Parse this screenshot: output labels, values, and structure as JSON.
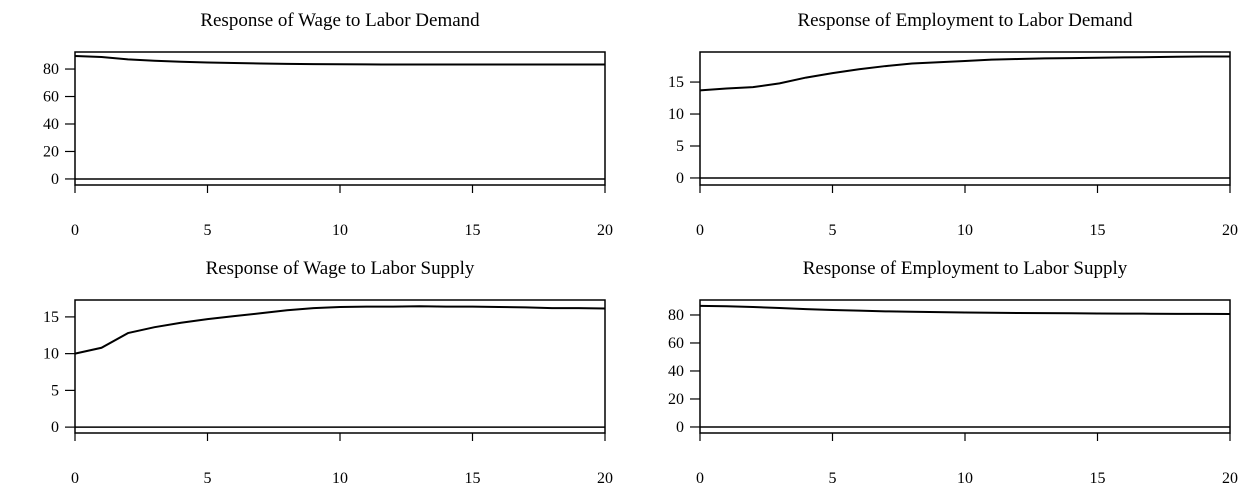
{
  "chart_data": [
    {
      "type": "line",
      "title": "Response of Wage to Labor Demand",
      "x": [
        0,
        1,
        2,
        3,
        4,
        5,
        6,
        7,
        8,
        9,
        10,
        11,
        12,
        13,
        14,
        15,
        16,
        17,
        18,
        19,
        20
      ],
      "values": [
        89.5,
        88.8,
        87,
        86,
        85.3,
        84.8,
        84.4,
        84,
        83.8,
        83.6,
        83.5,
        83.4,
        83.3,
        83.3,
        83.3,
        83.3,
        83.3,
        83.3,
        83.3,
        83.3,
        83.3
      ],
      "color": "#000000",
      "hline": 0,
      "xlim": [
        0,
        20
      ],
      "xticks": [
        0,
        5,
        10,
        15,
        20
      ],
      "ylim": [
        -4.4,
        92.4
      ],
      "yticks": [
        0,
        20,
        40,
        60,
        80
      ]
    },
    {
      "type": "line",
      "title": "Response of Employment to Labor Demand",
      "x": [
        0,
        1,
        2,
        3,
        4,
        5,
        6,
        7,
        8,
        9,
        10,
        11,
        12,
        13,
        14,
        15,
        16,
        17,
        18,
        19,
        20
      ],
      "values": [
        13.7,
        14,
        14.2,
        14.8,
        15.7,
        16.4,
        17,
        17.5,
        17.9,
        18.1,
        18.3,
        18.5,
        18.6,
        18.7,
        18.75,
        18.8,
        18.85,
        18.9,
        18.95,
        19,
        19
      ],
      "color": "#000000",
      "hline": 0,
      "xlim": [
        0,
        20
      ],
      "xticks": [
        0,
        5,
        10,
        15,
        20
      ],
      "ylim": [
        -1.1,
        19.7
      ],
      "yticks": [
        0,
        5,
        10,
        15
      ]
    },
    {
      "type": "line",
      "title": "Response of Wage to Labor Supply",
      "x": [
        0,
        1,
        2,
        3,
        4,
        5,
        6,
        7,
        8,
        9,
        10,
        11,
        12,
        13,
        14,
        15,
        16,
        17,
        18,
        19,
        20
      ],
      "values": [
        10,
        10.8,
        12.8,
        13.6,
        14.2,
        14.7,
        15.1,
        15.5,
        15.9,
        16.2,
        16.35,
        16.4,
        16.4,
        16.45,
        16.4,
        16.4,
        16.35,
        16.3,
        16.2,
        16.2,
        16.15
      ],
      "color": "#000000",
      "hline": 0,
      "xlim": [
        0,
        20
      ],
      "xticks": [
        0,
        5,
        10,
        15,
        20
      ],
      "ylim": [
        -0.8,
        17.3
      ],
      "yticks": [
        0,
        5,
        10,
        15
      ]
    },
    {
      "type": "line",
      "title": "Response of Employment to Labor Supply",
      "x": [
        0,
        1,
        2,
        3,
        4,
        5,
        6,
        7,
        8,
        9,
        10,
        11,
        12,
        13,
        14,
        15,
        16,
        17,
        18,
        19,
        20
      ],
      "values": [
        86.5,
        86.2,
        85.7,
        85,
        84.2,
        83.6,
        83.1,
        82.6,
        82.3,
        82,
        81.8,
        81.6,
        81.4,
        81.3,
        81.2,
        81.1,
        81,
        80.9,
        80.8,
        80.8,
        80.7
      ],
      "color": "#000000",
      "hline": 0,
      "xlim": [
        0,
        20
      ],
      "xticks": [
        0,
        5,
        10,
        15,
        20
      ],
      "ylim": [
        -4.3,
        90.7
      ],
      "yticks": [
        0,
        20,
        40,
        60,
        80
      ]
    }
  ]
}
